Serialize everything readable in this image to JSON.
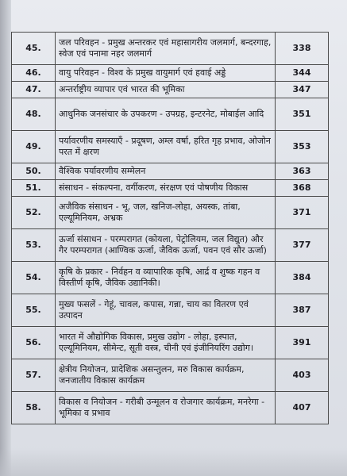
{
  "toc": {
    "rows": [
      {
        "num": "45.",
        "title": "जल परिवहन - प्रमुख अन्तरकर एवं महासागरीय जलमार्ग, बन्दरगाह, स्वेज एवं पनामा नहर जलमार्ग",
        "page": "338"
      },
      {
        "num": "46.",
        "title": "वायु परिवहन - विश्व के प्रमुख वायुमार्ग एवं हवाई अड्डे",
        "page": "344"
      },
      {
        "num": "47.",
        "title": "अन्तर्राष्ट्रीय व्यापार एवं भारत की भूमिका",
        "page": "347"
      },
      {
        "num": "48.",
        "title": "आधुनिक जनसंचार के उपकरण - उपग्रह, इन्टरनेट, मोबाईल आदि",
        "page": "351"
      },
      {
        "num": "49.",
        "title": "पर्यावरणीय समस्याएँ - प्रदूषण, अम्ल वर्षा, हरित गृह प्रभाव, ओजोन परत में क्षरण",
        "page": "353"
      },
      {
        "num": "50.",
        "title": "वैश्विक पर्यावरणीय सम्मेलन",
        "page": "363"
      },
      {
        "num": "51.",
        "title": "संसाधन - संकल्पना, वर्गीकरण, संरक्षण एवं पोषणीय विकास",
        "page": "368"
      },
      {
        "num": "52.",
        "title": "अजैविक संसाधन - भू, जल, खनिज-लोहा, अयस्क, तांबा, एल्यूमिनियम, अभ्रक",
        "page": "371"
      },
      {
        "num": "53.",
        "title": "ऊर्जा संसाधन - परम्परागत (कोयला, पेट्रोलियम, जल विद्युत) और गैर परम्परागत (आण्विक ऊर्जा, जैविक ऊर्जा, पवन एवं सौर ऊर्जा)",
        "page": "377"
      },
      {
        "num": "54.",
        "title": "कृषि के प्रकार - निर्वहन व व्यापारिक कृषि, आर्द्र व शुष्क गहन व विस्तीर्ण कृषि, जैविक उद्यानिकी।",
        "page": "384"
      },
      {
        "num": "55.",
        "title": "मुख्य फसलें - गेहूं, चावल, कपास, गन्ना, चाय का वितरण एवं उत्पादन",
        "page": "387"
      },
      {
        "num": "56.",
        "title": "भारत में औद्योगिक विकास, प्रमुख उद्योग - लोहा, इस्पात, एल्यूमिनियम, सीमेन्ट, सूती वस्त्र, चीनी एवं इंजीनियरिंग उद्योग।",
        "page": "391"
      },
      {
        "num": "57.",
        "title": "क्षेत्रीय नियोजन, प्रादेशिक असन्तुलन, मरु विकास कार्यक्रम, जनजातीय विकास कार्यक्रम",
        "page": "403"
      },
      {
        "num": "58.",
        "title": "विकास व नियोजन - गरीबी उन्मूलन व रोजगार कार्यक्रम, मनरेगा - भूमिका व प्रभाव",
        "page": "407"
      }
    ]
  }
}
